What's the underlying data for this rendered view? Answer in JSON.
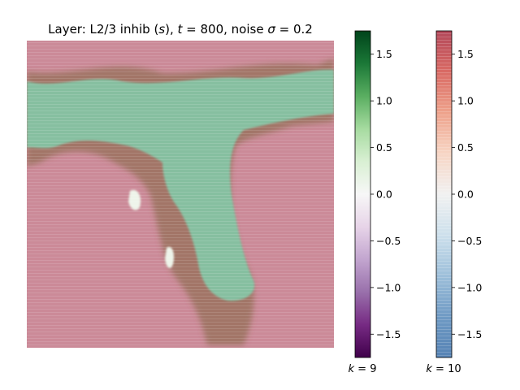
{
  "chart_data": {
    "type": "heatmap",
    "title": "Layer: L2/3 inhib (s), t = 800, noise σ = 0.2",
    "title_parts": {
      "prefix": "Layer: L2/3 inhib (",
      "s": "s",
      "mid1": "), ",
      "t": "t",
      "mid2": " = 800, noise ",
      "sigma": "σ",
      "suffix": " = 0.2"
    },
    "xlabel": "",
    "ylabel": "",
    "grid": false,
    "colorbars": [
      {
        "label": "k = 9",
        "label_parts": {
          "k": "k",
          "rest": " = 9"
        },
        "colormap": "PRGn",
        "range": [
          -1.75,
          1.75
        ],
        "ticks": [
          1.5,
          1.0,
          0.5,
          0.0,
          -0.5,
          -1.0,
          -1.5
        ],
        "tick_labels": [
          "1.5",
          "1.0",
          "0.5",
          "0.0",
          "−0.5",
          "−1.0",
          "−1.5"
        ],
        "stops": [
          "#40004b",
          "#762a83",
          "#9970ab",
          "#c2a5cf",
          "#e7d4e8",
          "#f7f7f7",
          "#d9f0d3",
          "#a6dba0",
          "#5aae61",
          "#1b7837",
          "#00441b"
        ]
      },
      {
        "label": "k = 10",
        "label_parts": {
          "k": "k",
          "rest": " = 10"
        },
        "colormap": "RdBu",
        "range": [
          -1.75,
          1.75
        ],
        "ticks": [
          1.5,
          1.0,
          0.5,
          0.0,
          -0.5,
          -1.0,
          -1.5
        ],
        "tick_labels": [
          "1.5",
          "1.0",
          "0.5",
          "0.0",
          "−0.5",
          "−1.0",
          "−1.5"
        ],
        "stops": [
          "#5582b4",
          "#6f9ac4",
          "#9dbfda",
          "#cde0ec",
          "#f1f1f1",
          "#f7d5c4",
          "#eea28b",
          "#d96a64",
          "#b3485a"
        ]
      }
    ],
    "field_colors": {
      "pink": "#cb8a98",
      "green": "#86bfa0",
      "brown": "#80643f",
      "white": "#eef4ea"
    }
  }
}
